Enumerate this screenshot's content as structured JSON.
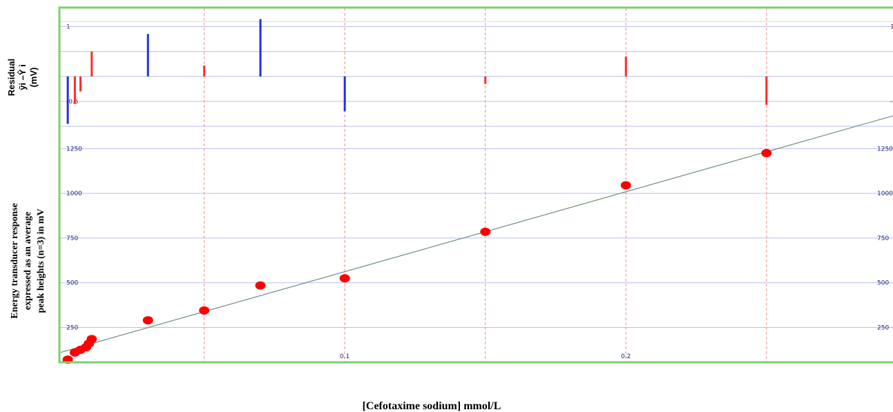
{
  "chart_data": {
    "type": "scatter",
    "xlabel": "[Cefotaxime sodium] mmol/L",
    "x_ticks": [
      "0.1",
      "0.2"
    ],
    "colors": {
      "frame": "#7ccf6a",
      "grid_h": "#b7bdf0",
      "grid_v": "#f08a8a",
      "point": "#ff0000",
      "fit_line": "#6e8d7c",
      "residual_negative_series": "#ff2a2a",
      "residual_blue": "#1f2fe0"
    },
    "calibration": {
      "ylabel_lines": [
        "Energy transducer response",
        "expressed as an average",
        "peak heights (n=3) in mV"
      ],
      "y_ticks": [
        "250",
        "500",
        "750",
        "1000",
        "1250"
      ],
      "xlim": [
        -0.0015,
        0.295
      ],
      "ylim": [
        55,
        1375
      ],
      "x": [
        0.0,
        0.004,
        0.006,
        0.008,
        0.009,
        0.01,
        0.03,
        0.05,
        0.07,
        0.1,
        0.15,
        0.2,
        0.25
      ],
      "y": [
        70,
        110,
        125,
        140,
        160,
        185,
        290,
        345,
        485,
        525,
        785,
        1045,
        1225
      ],
      "fit": {
        "intercept": 115,
        "slope": 4470
      }
    },
    "residuals": {
      "ylabel_lines": [
        "Residual",
        "ȳi –Ŷ i",
        "(mV)"
      ],
      "y_ticks_left": [
        "1",
        "-0.5"
      ],
      "y_ticks_right": [
        "1",
        "-0.5"
      ],
      "ylim": [
        -1.0,
        1.2
      ],
      "x": [
        0.0,
        0.004,
        0.006,
        0.008,
        0.009,
        0.01,
        0.03,
        0.05,
        0.07,
        0.1,
        0.15,
        0.2,
        0.25
      ],
      "r": [
        -0.95,
        -0.55,
        -0.3,
        0.0,
        0.0,
        0.5,
        0.85,
        0.22,
        1.15,
        -0.7,
        -0.15,
        0.4,
        -0.57
      ],
      "bar_color": [
        "blue",
        "red",
        "red",
        "red",
        "red",
        "red",
        "blue",
        "red",
        "blue",
        "blue",
        "red",
        "red",
        "red"
      ]
    }
  }
}
